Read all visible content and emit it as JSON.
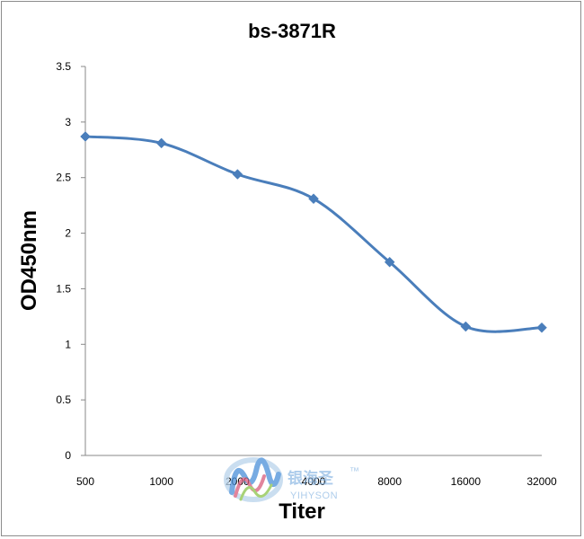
{
  "chart_data": {
    "type": "line",
    "title": "bs-3871R",
    "xlabel": "Titer",
    "ylabel": "OD450nm",
    "categories": [
      "500",
      "1000",
      "2000",
      "4000",
      "8000",
      "16000",
      "32000"
    ],
    "series": [
      {
        "values": [
          2.87,
          2.81,
          2.53,
          2.31,
          1.74,
          1.16,
          1.15
        ]
      }
    ],
    "yticks": [
      "0",
      "0.5",
      "1",
      "1.5",
      "2",
      "2.5",
      "3",
      "3.5"
    ],
    "ylim": [
      0,
      3.5
    ],
    "grid": false,
    "legend": "none",
    "line_color": "#4a7ebb",
    "marker": "diamond"
  },
  "watermark": {
    "logo_text": "银海圣",
    "trademark": "™",
    "brand": "YIHYSON"
  }
}
